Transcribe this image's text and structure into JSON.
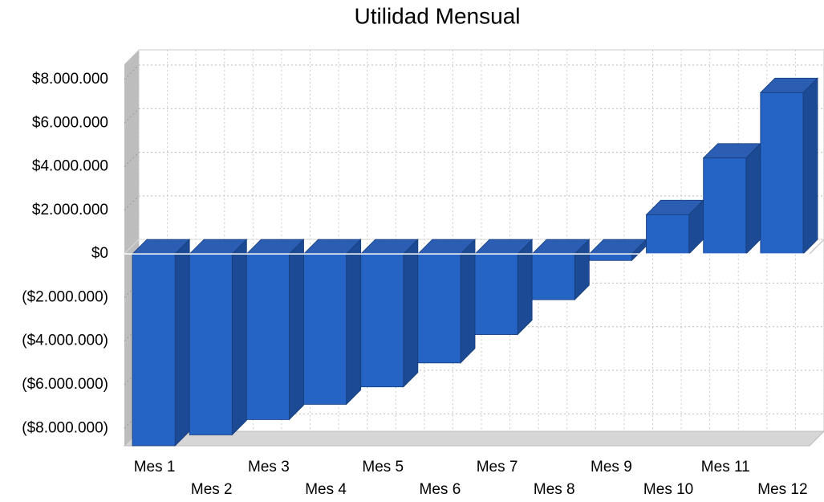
{
  "chart_data": {
    "type": "bar3d",
    "title": "Utilidad Mensual",
    "categories": [
      "Mes 1",
      "Mes 2",
      "Mes 3",
      "Mes 4",
      "Mes 5",
      "Mes 6",
      "Mes 7",
      "Mes 8",
      "Mes 9",
      "Mes 10",
      "Mes 11",
      "Mes 12"
    ],
    "values": [
      -8800000,
      -8300000,
      -7600000,
      -6900000,
      -6100000,
      -5000000,
      -3700000,
      -2100000,
      -300000,
      1800000,
      4400000,
      7400000
    ],
    "color": "#2563c4",
    "ylim": [
      -8800000,
      8700000
    ],
    "yticks": [
      {
        "value": -8000000,
        "label": "($8.000.000)"
      },
      {
        "value": -6000000,
        "label": "($6.000.000)"
      },
      {
        "value": -4000000,
        "label": "($4.000.000)"
      },
      {
        "value": -2000000,
        "label": "($2.000.000)"
      },
      {
        "value": 0,
        "label": "$0"
      },
      {
        "value": 2000000,
        "label": "$2.000.000"
      },
      {
        "value": 4000000,
        "label": "$4.000.000"
      },
      {
        "value": 6000000,
        "label": "$6.000.000"
      },
      {
        "value": 8000000,
        "label": "$8.000.000"
      }
    ],
    "grid": true
  }
}
